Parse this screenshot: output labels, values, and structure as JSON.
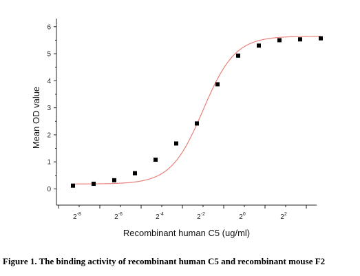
{
  "caption": "Figure 1. The binding activity of recombinant human C5 and recombinant mouse F2",
  "chart_data": {
    "type": "scatter",
    "xlabel": "Recombinant human  C5  (ug/ml)",
    "ylabel": "Mean OD value",
    "x_scale": "log2",
    "xlim_log2": [
      -9.1,
      3.5
    ],
    "ylim": [
      -0.6,
      6.3
    ],
    "y_ticks": [
      0,
      1,
      2,
      3,
      4,
      5,
      6
    ],
    "x_tick_labels": [
      {
        "base": "2",
        "exp": "-8",
        "log2": -8
      },
      {
        "base": "2",
        "exp": "-6",
        "log2": -6
      },
      {
        "base": "2",
        "exp": "-4",
        "log2": -4
      },
      {
        "base": "2",
        "exp": "-2",
        "log2": -2
      },
      {
        "base": "2",
        "exp": "0",
        "log2": 0
      },
      {
        "base": "2",
        "exp": "2",
        "log2": 2
      }
    ],
    "x_minor_log2": [
      -9,
      -7,
      -5,
      -3,
      -1,
      1,
      3
    ],
    "points": [
      {
        "log2x": -8.3,
        "y": 0.12
      },
      {
        "log2x": -7.3,
        "y": 0.19
      },
      {
        "log2x": -6.3,
        "y": 0.32
      },
      {
        "log2x": -5.3,
        "y": 0.58
      },
      {
        "log2x": -4.3,
        "y": 1.08
      },
      {
        "log2x": -3.3,
        "y": 1.68
      },
      {
        "log2x": -2.3,
        "y": 2.42
      },
      {
        "log2x": -1.3,
        "y": 3.87
      },
      {
        "log2x": -0.3,
        "y": 4.93
      },
      {
        "log2x": 0.7,
        "y": 5.3
      },
      {
        "log2x": 1.7,
        "y": 5.5
      },
      {
        "log2x": 2.7,
        "y": 5.53
      },
      {
        "log2x": 3.7,
        "y": 5.57
      }
    ],
    "fit_curve": {
      "bottom": 0.18,
      "top": 5.65,
      "log2_ec50": -2.0,
      "hill_slope": 0.62
    },
    "colors": {
      "points": "#000000",
      "curve": "#e8807a",
      "axis": "#222222"
    }
  }
}
